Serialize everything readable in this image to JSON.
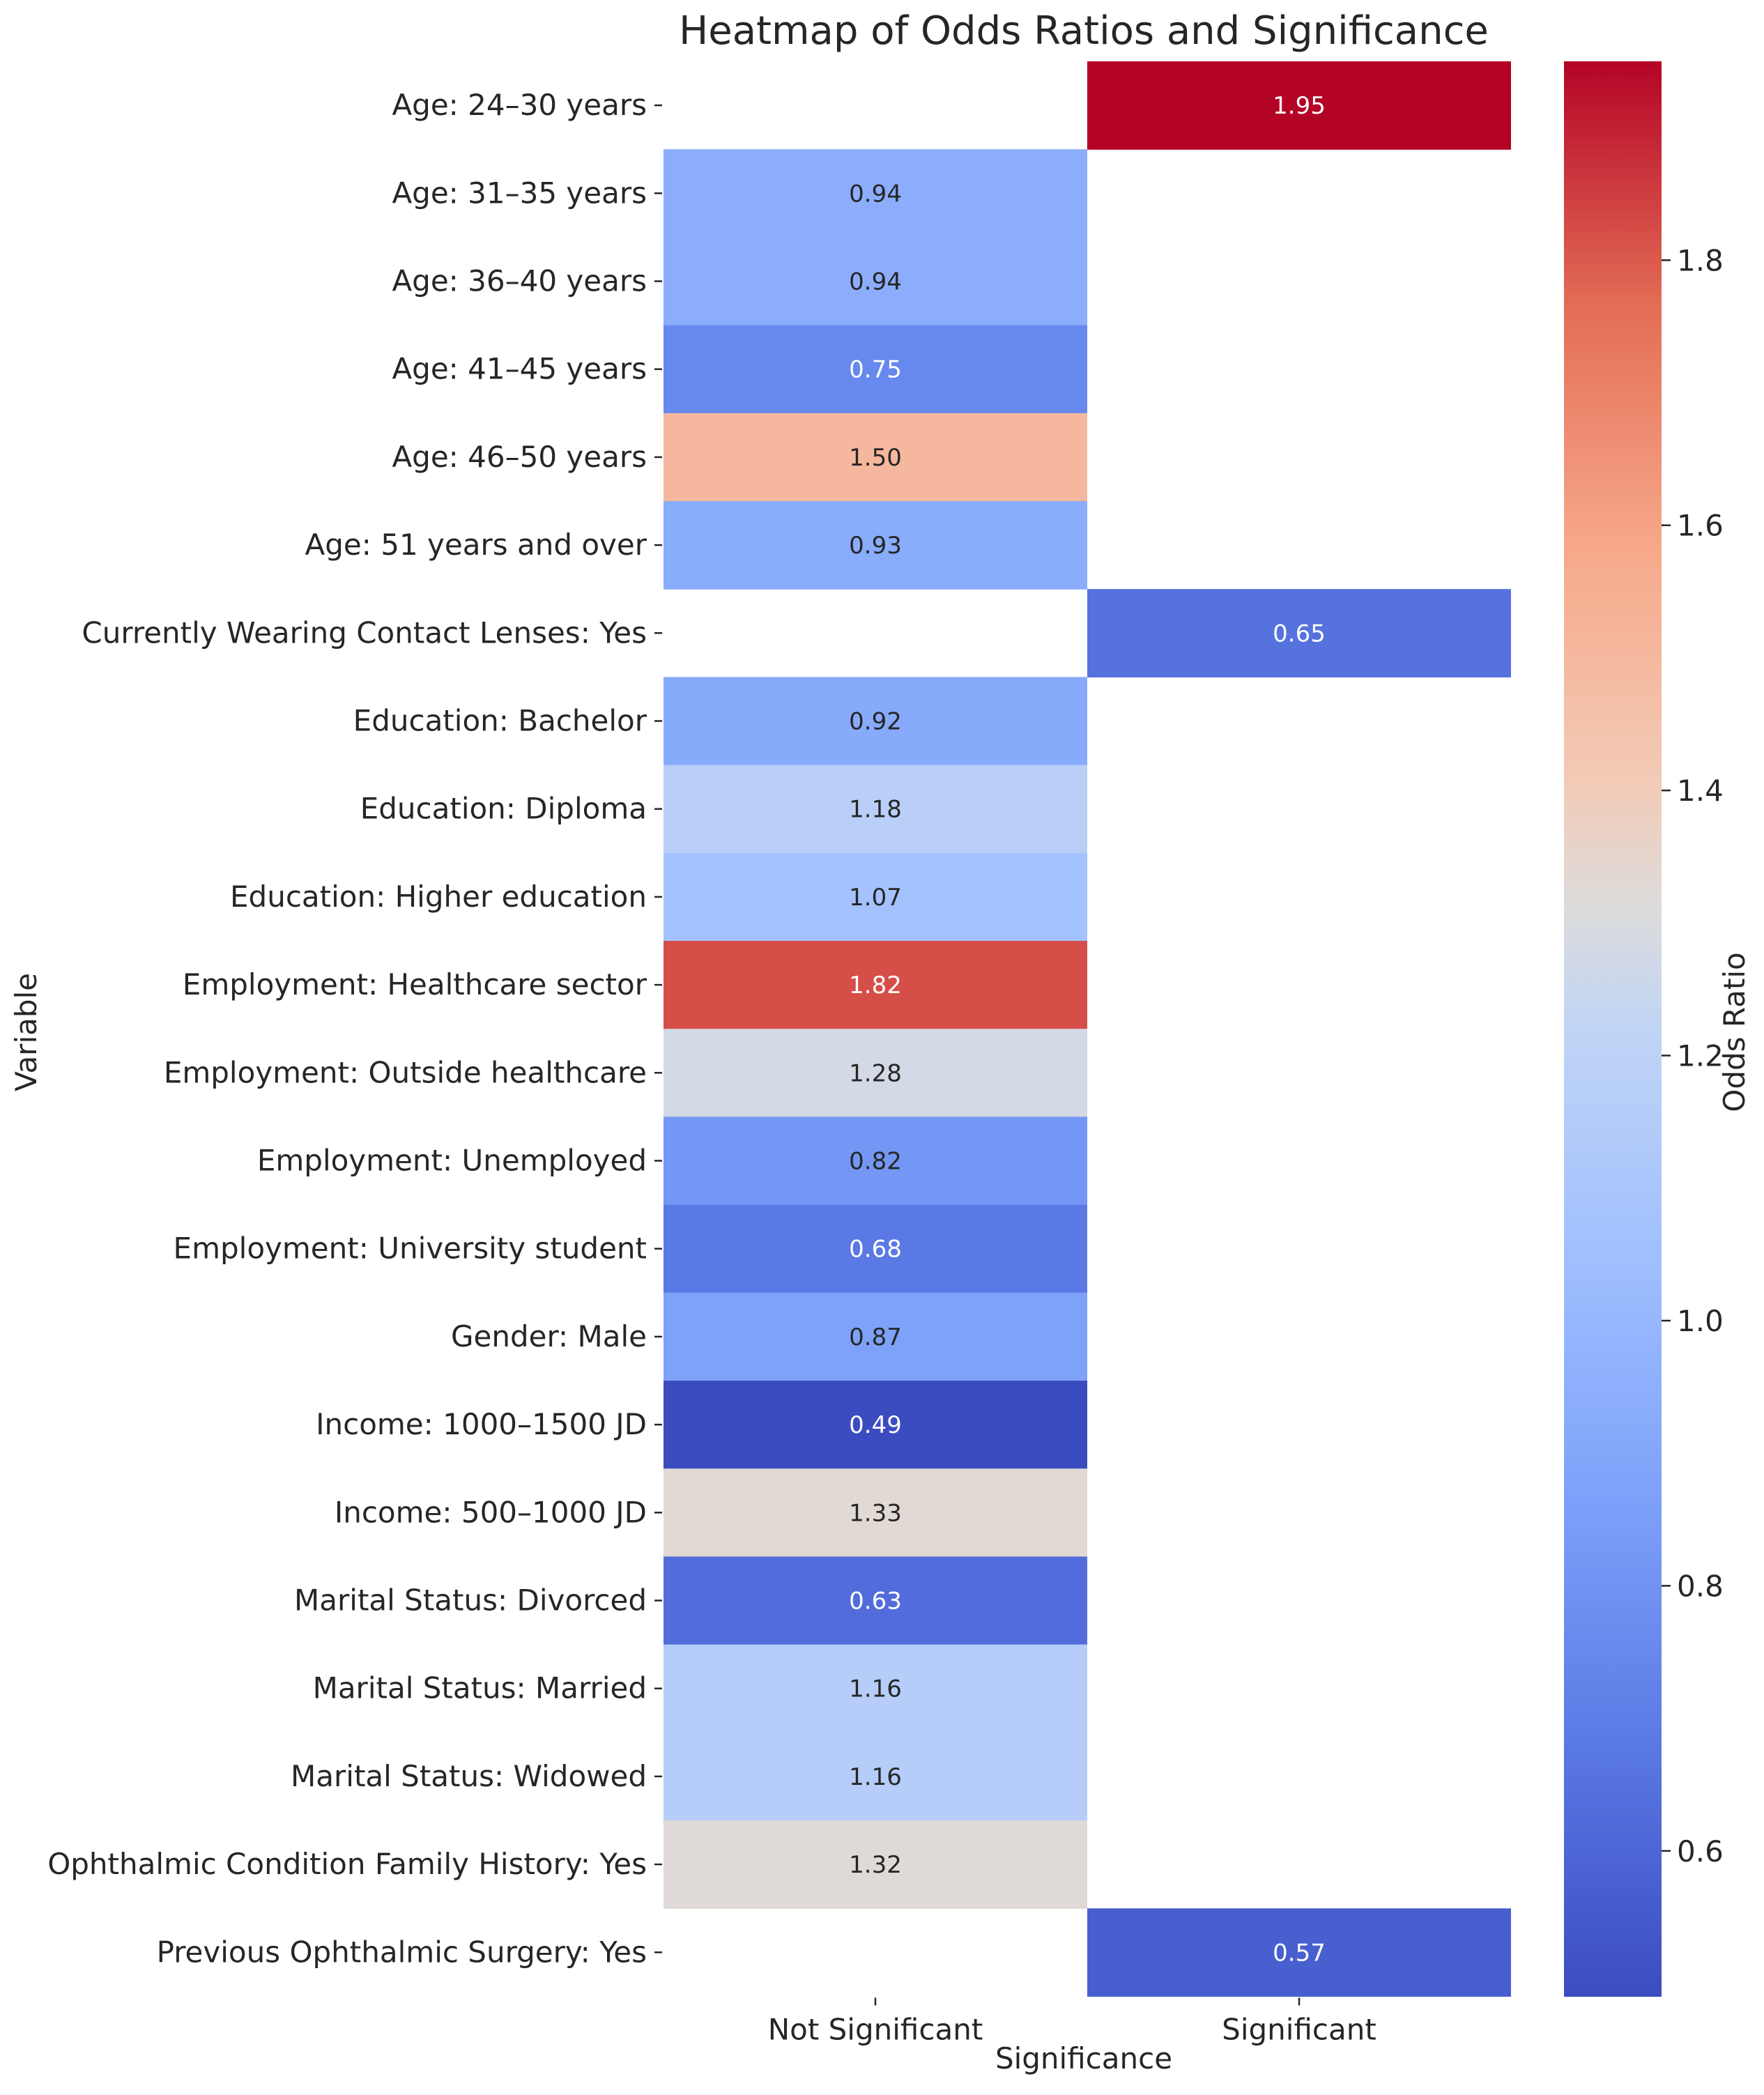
{
  "chart_data": {
    "type": "heatmap",
    "title": "Heatmap of Odds Ratios and Significance",
    "xlabel": "Significance",
    "ylabel": "Variable",
    "columns": [
      "Not Significant",
      "Significant"
    ],
    "rows": [
      {
        "label": "Age: 24–30 years",
        "column": "Significant",
        "value": 1.95,
        "value_label": "1.95"
      },
      {
        "label": "Age: 31–35 years",
        "column": "Not Significant",
        "value": 0.94,
        "value_label": "0.94"
      },
      {
        "label": "Age: 36–40 years",
        "column": "Not Significant",
        "value": 0.94,
        "value_label": "0.94"
      },
      {
        "label": "Age: 41–45 years",
        "column": "Not Significant",
        "value": 0.75,
        "value_label": "0.75"
      },
      {
        "label": "Age: 46–50 years",
        "column": "Not Significant",
        "value": 1.5,
        "value_label": "1.50"
      },
      {
        "label": "Age: 51 years and over",
        "column": "Not Significant",
        "value": 0.93,
        "value_label": "0.93"
      },
      {
        "label": "Currently Wearing Contact Lenses: Yes",
        "column": "Significant",
        "value": 0.65,
        "value_label": "0.65"
      },
      {
        "label": "Education: Bachelor",
        "column": "Not Significant",
        "value": 0.92,
        "value_label": "0.92"
      },
      {
        "label": "Education: Diploma",
        "column": "Not Significant",
        "value": 1.18,
        "value_label": "1.18"
      },
      {
        "label": "Education: Higher education",
        "column": "Not Significant",
        "value": 1.07,
        "value_label": "1.07"
      },
      {
        "label": "Employment: Healthcare sector",
        "column": "Not Significant",
        "value": 1.82,
        "value_label": "1.82"
      },
      {
        "label": "Employment: Outside healthcare",
        "column": "Not Significant",
        "value": 1.28,
        "value_label": "1.28"
      },
      {
        "label": "Employment: Unemployed",
        "column": "Not Significant",
        "value": 0.82,
        "value_label": "0.82"
      },
      {
        "label": "Employment: University student",
        "column": "Not Significant",
        "value": 0.68,
        "value_label": "0.68"
      },
      {
        "label": "Gender: Male",
        "column": "Not Significant",
        "value": 0.87,
        "value_label": "0.87"
      },
      {
        "label": "Income: 1000–1500 JD",
        "column": "Not Significant",
        "value": 0.49,
        "value_label": "0.49"
      },
      {
        "label": "Income: 500–1000 JD",
        "column": "Not Significant",
        "value": 1.33,
        "value_label": "1.33"
      },
      {
        "label": "Marital Status: Divorced",
        "column": "Not Significant",
        "value": 0.63,
        "value_label": "0.63"
      },
      {
        "label": "Marital Status: Married",
        "column": "Not Significant",
        "value": 1.16,
        "value_label": "1.16"
      },
      {
        "label": "Marital Status: Widowed",
        "column": "Not Significant",
        "value": 1.16,
        "value_label": "1.16"
      },
      {
        "label": "Ophthalmic Condition Family History: Yes",
        "column": "Not Significant",
        "value": 1.32,
        "value_label": "1.32"
      },
      {
        "label": "Previous Ophthalmic Surgery: Yes",
        "column": "Significant",
        "value": 0.57,
        "value_label": "0.57"
      }
    ],
    "colorbar": {
      "label": "Odds Ratio",
      "colormap": "coolwarm",
      "range": [
        0.49,
        1.95
      ],
      "ticks": [
        0.6,
        0.8,
        1.0,
        1.2,
        1.4,
        1.6,
        1.8
      ],
      "tick_labels": [
        "0.6",
        "0.8",
        "1.0",
        "1.2",
        "1.4",
        "1.6",
        "1.8"
      ]
    }
  }
}
